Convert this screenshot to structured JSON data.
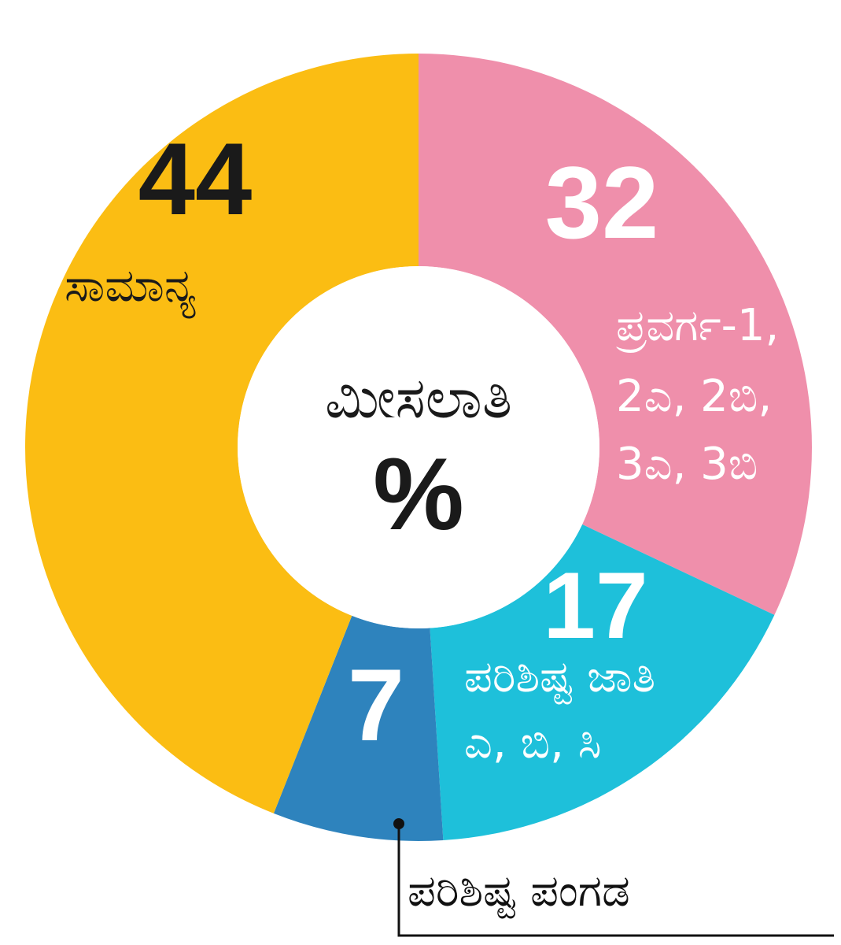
{
  "chart_data": {
    "type": "donut",
    "center_label": "ಮೀಸಲಾತಿ",
    "center_unit": "%",
    "slices": [
      {
        "value": 32,
        "label_lines": [
          "ಪ್ರವರ್ಗ-1,",
          "2ಎ, 2ಬಿ,",
          "3ಎ, 3ಬಿ"
        ],
        "color": "#ef8fab",
        "value_color": "#ffffff",
        "label_color": "#ffffff"
      },
      {
        "value": 17,
        "label_lines": [
          "ಪರಿಶಿಷ್ಟ ಜಾತಿ",
          "ಎ, ಬಿ, ಸಿ"
        ],
        "color": "#1ec0da",
        "value_color": "#ffffff",
        "label_color": "#ffffff"
      },
      {
        "value": 7,
        "label_lines": [
          "ಪರಿಶಿಷ್ಟ ಪಂಗಡ"
        ],
        "color": "#2e83bd",
        "value_color": "#ffffff",
        "label_color": "#111111"
      },
      {
        "value": 44,
        "label_lines": [
          "ಸಾಮಾನ್ಯ"
        ],
        "color": "#fbbd13",
        "value_color": "#1a1a1a",
        "label_color": "#1a1a1a"
      }
    ]
  }
}
